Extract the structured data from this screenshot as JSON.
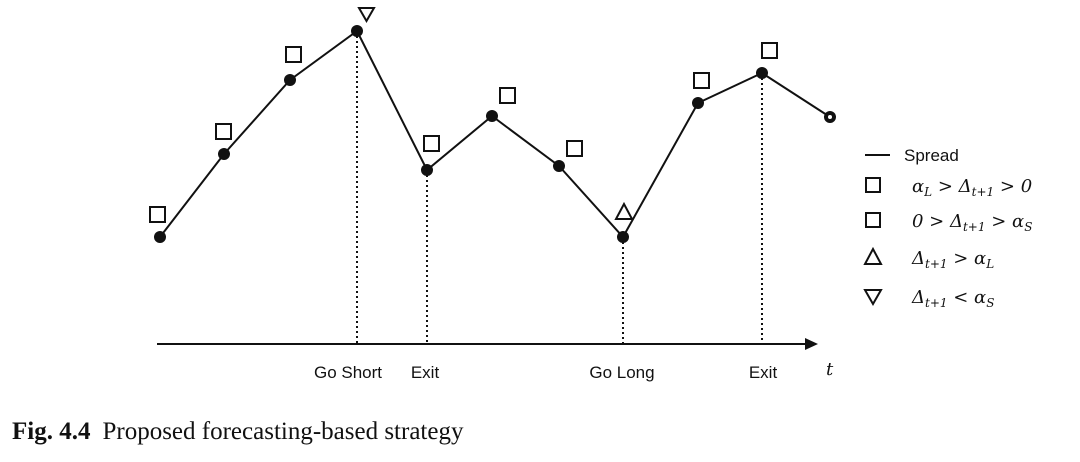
{
  "figure": {
    "caption_number": "Fig. 4.4",
    "caption_text": "Proposed forecasting-based strategy",
    "axis_variable": "t",
    "events": [
      "Go Short",
      "Exit",
      "Go Long",
      "Exit"
    ],
    "legend": [
      {
        "marker": "line",
        "text": "Spread"
      },
      {
        "marker": "square",
        "text": "αL > Δt+1 > 0"
      },
      {
        "marker": "square",
        "text": "0 > Δt+1 > αS"
      },
      {
        "marker": "triangle-up",
        "text": "Δt+1 > αL"
      },
      {
        "marker": "triangle-down",
        "text": "Δt+1 < αS"
      }
    ],
    "spread_points": [
      {
        "t": 1,
        "marker": "square"
      },
      {
        "t": 2,
        "marker": "square"
      },
      {
        "t": 3,
        "marker": "square"
      },
      {
        "t": 4,
        "marker": "triangle-down",
        "event": "Go Short"
      },
      {
        "t": 5,
        "marker": "square",
        "event": "Exit"
      },
      {
        "t": 6,
        "marker": "square"
      },
      {
        "t": 7,
        "marker": "square"
      },
      {
        "t": 8,
        "marker": "triangle-up",
        "event": "Go Long"
      },
      {
        "t": 9,
        "marker": "square"
      },
      {
        "t": 10,
        "marker": "square",
        "event": "Exit"
      },
      {
        "t": 11,
        "marker": "none"
      }
    ]
  }
}
